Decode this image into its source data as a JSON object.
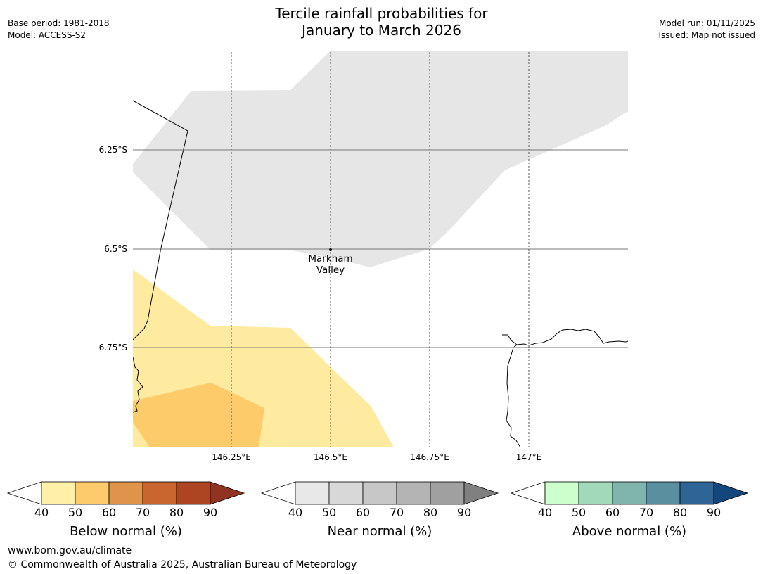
{
  "header": {
    "title_line1": "Tercile rainfall probabilities for",
    "title_line2": "January to March 2026",
    "base_period": "Base period: 1981-2018",
    "model": "Model: ACCESS-S2",
    "model_run": "Model run: 01/11/2025",
    "issued": "Issued: Map not issued"
  },
  "map": {
    "latitude_labels": [
      "6.25°S",
      "6.5°S",
      "6.75°S"
    ],
    "longitude_labels": [
      "146.25°E",
      "146.5°E",
      "146.75°E",
      "147°E"
    ],
    "location": {
      "name_line1": "Markham",
      "name_line2": "Valley"
    }
  },
  "colorbars": [
    {
      "title": "Below normal (%)",
      "ticks": [
        "40",
        "50",
        "60",
        "70",
        "80",
        "90"
      ],
      "colors": [
        "#fff0a8",
        "#fdcb6c",
        "#e0944a",
        "#c9652f",
        "#ad4523"
      ],
      "extend_color": "#8f3421"
    },
    {
      "title": "Near normal (%)",
      "ticks": [
        "40",
        "50",
        "60",
        "70",
        "80",
        "90"
      ],
      "colors": [
        "#e8e8e8",
        "#d8d8d8",
        "#c7c7c7",
        "#b4b4b4",
        "#a0a0a0"
      ],
      "extend_color": "#808080"
    },
    {
      "title": "Above normal (%)",
      "ticks": [
        "40",
        "50",
        "60",
        "70",
        "80",
        "90"
      ],
      "colors": [
        "#ccffcc",
        "#a2d9bb",
        "#7fb5ad",
        "#5a8fa0",
        "#2e6496"
      ],
      "extend_color": "#14467e"
    }
  ],
  "footer": {
    "website": "www.bom.gov.au/climate",
    "copyright": "© Commonwealth of Australia 2025, Australian Bureau of Meteorology"
  }
}
